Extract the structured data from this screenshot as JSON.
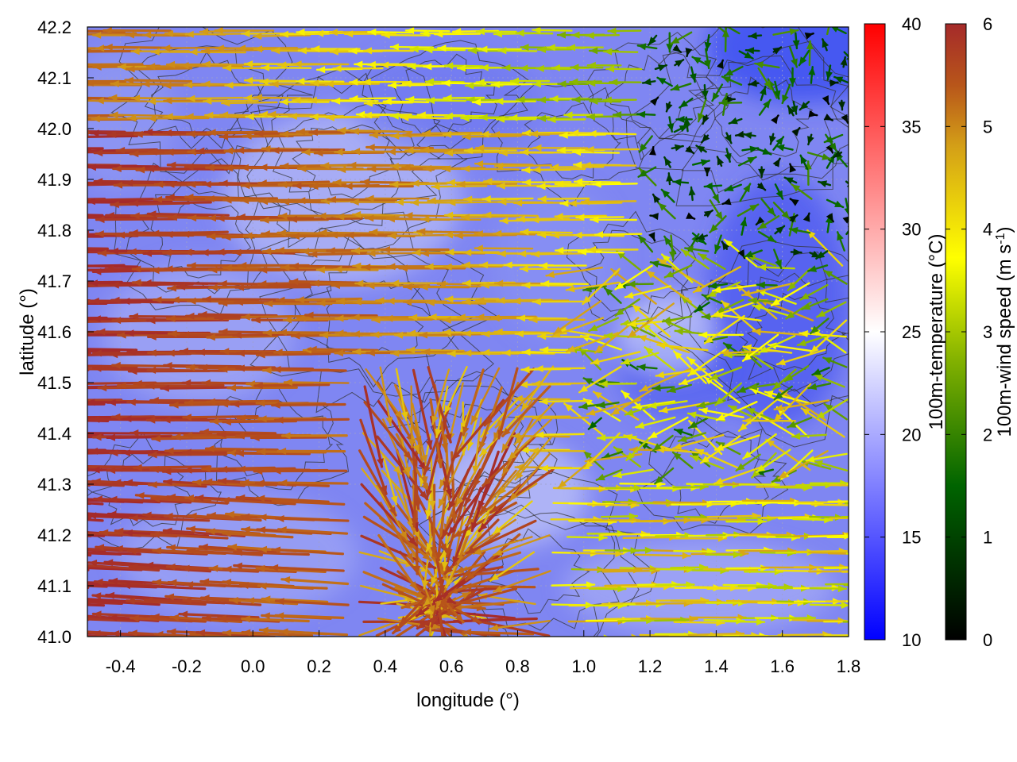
{
  "chart_data": {
    "type": "vector-field",
    "xlabel": "longitude (°)",
    "ylabel": "latitude (°)",
    "xlim": [
      -0.5,
      1.8
    ],
    "ylim": [
      41.0,
      42.2
    ],
    "x_ticks": [
      "-0.4",
      "-0.2",
      "0.0",
      "0.2",
      "0.4",
      "0.6",
      "0.8",
      "1.0",
      "1.2",
      "1.4",
      "1.6",
      "1.8"
    ],
    "y_ticks": [
      "41.0",
      "41.1",
      "41.2",
      "41.3",
      "41.4",
      "41.5",
      "41.6",
      "41.7",
      "41.8",
      "41.9",
      "42.0",
      "42.1",
      "42.2"
    ],
    "grid": true,
    "background_field": {
      "label": "100m-temperature (°C)",
      "range": [
        10,
        40
      ],
      "ticks": [
        "10",
        "15",
        "20",
        "25",
        "30",
        "35",
        "40"
      ],
      "colors": [
        "#0000ff",
        "#ffffff",
        "#ff0000"
      ],
      "typical_range": [
        15,
        22
      ]
    },
    "vectors": {
      "label": "100m-wind speed (m s-1)",
      "label_main": "100m-wind speed (m s",
      "label_sup": "-1",
      "label_end": ")",
      "range": [
        0,
        6
      ],
      "ticks": [
        "0",
        "1",
        "2",
        "3",
        "4",
        "5",
        "6"
      ],
      "colors": [
        "#000000",
        "#006400",
        "#80b000",
        "#ffff00",
        "#d4a017",
        "#b8561a",
        "#a52a2a"
      ],
      "regimes": [
        {
          "region": "west (lon < 0.6)",
          "direction": "easterly, pointing west",
          "speed": [
            3,
            6
          ]
        },
        {
          "region": "central convergence (lon 0.3–0.9, lat 41.0–41.5)",
          "direction": "mixed, converging",
          "speed": [
            4,
            6
          ]
        },
        {
          "region": "southeast (lon > 0.9, lat < 41.3)",
          "direction": "westerly, pointing east",
          "speed": [
            2,
            4
          ]
        },
        {
          "region": "northeast (lon > 1.2, lat > 41.7)",
          "direction": "weak, variable",
          "speed": [
            0,
            2
          ]
        }
      ]
    },
    "contours": {
      "color": "#333333",
      "description": "terrain elevation contours"
    }
  }
}
